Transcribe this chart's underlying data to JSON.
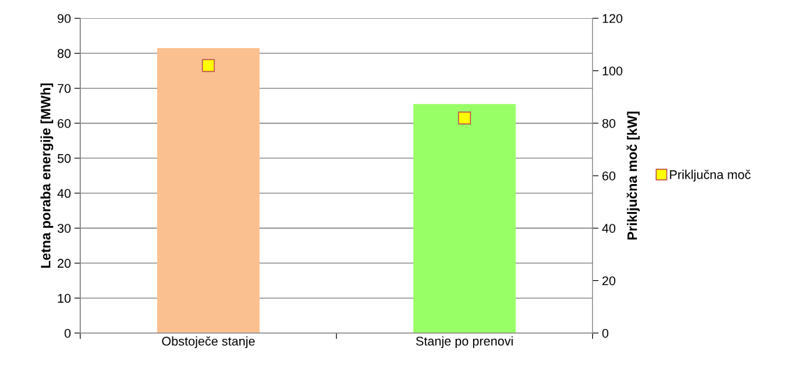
{
  "chart_data": {
    "type": "bar",
    "categories": [
      "Obstoječe stanje",
      "Stanje po prenovi"
    ],
    "ylabel": "Letna poraba energije [MWh]",
    "y2label": "Priključna moč [kW]",
    "series": [
      {
        "colors": [
          "#fac090",
          "#99ff66"
        ],
        "values": [
          81.5,
          65.5
        ]
      },
      {
        "type": "scatter",
        "name": "Priključna moč",
        "color": "#ffff00",
        "marker": "square",
        "axis": "y2",
        "values": [
          102,
          82
        ]
      }
    ],
    "ylim": [
      0,
      90
    ],
    "yticks": [
      0,
      10,
      20,
      30,
      40,
      50,
      60,
      70,
      80,
      90
    ],
    "y2lim": [
      0,
      120
    ],
    "y2ticks": [
      0,
      20,
      40,
      60,
      80,
      100,
      120
    ],
    "grid": "y",
    "legend": "right"
  }
}
